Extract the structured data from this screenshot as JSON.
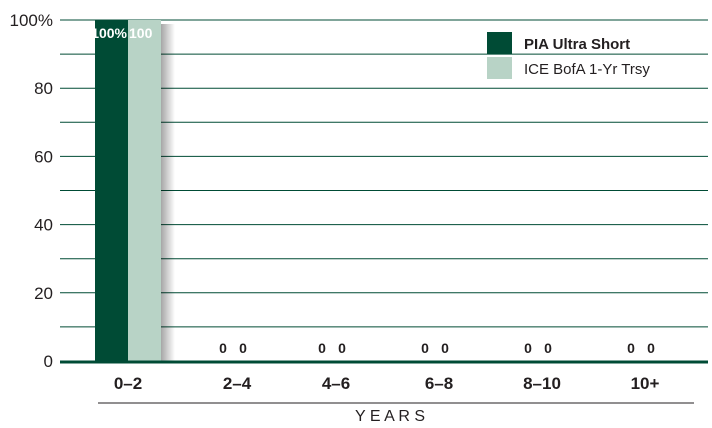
{
  "chart_data": {
    "type": "bar",
    "categories": [
      "0–2",
      "2–4",
      "4–6",
      "6–8",
      "8–10",
      "10+"
    ],
    "series": [
      {
        "name": "PIA Ultra Short",
        "values": [
          100,
          0,
          0,
          0,
          0,
          0
        ],
        "labels": [
          "100%",
          "0",
          "0",
          "0",
          "0",
          "0"
        ],
        "color": "#004b35"
      },
      {
        "name": "ICE BofA 1-Yr Trsy",
        "values": [
          100,
          0,
          0,
          0,
          0,
          0
        ],
        "labels": [
          "100",
          "0",
          "0",
          "0",
          "0",
          "0"
        ],
        "color": "#b8d3c6"
      }
    ],
    "yticks": [
      "0",
      "20",
      "40",
      "60",
      "80",
      "100%"
    ],
    "ytick_values": [
      0,
      20,
      40,
      60,
      80,
      100
    ],
    "ylim": [
      0,
      100
    ],
    "xlabel": "Y E A R S",
    "ylabel": "",
    "title": "",
    "grid": true,
    "legend_position": "top-right",
    "axis_color": "#004b35",
    "grid_color": "#004b35"
  }
}
